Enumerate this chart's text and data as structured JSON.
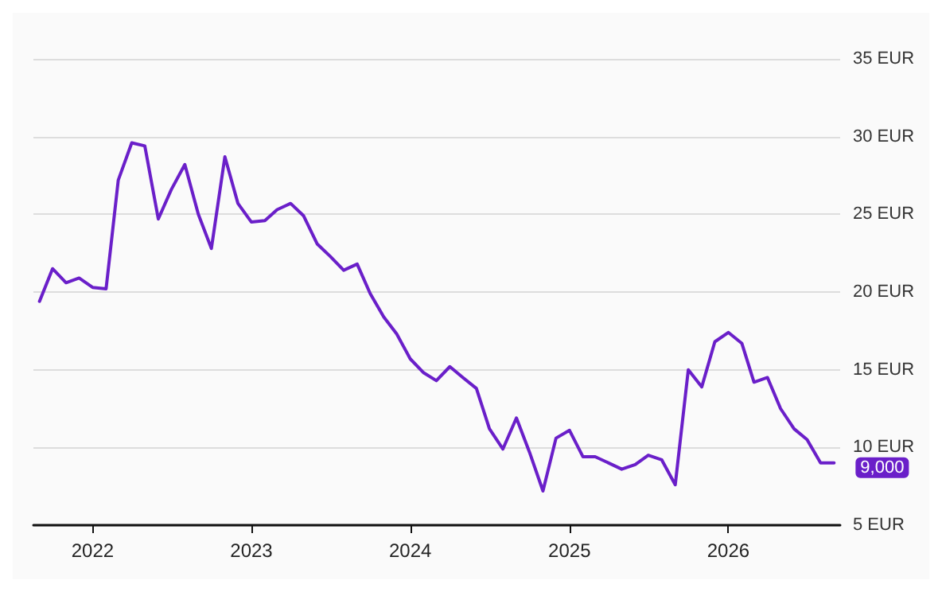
{
  "chart_data": {
    "type": "line",
    "x": [
      "2021-09",
      "2021-10",
      "2021-11",
      "2021-12",
      "2022-01",
      "2022-02",
      "2022-03",
      "2022-04",
      "2022-05",
      "2022-06",
      "2022-07",
      "2022-08",
      "2022-09",
      "2022-10",
      "2022-11",
      "2022-12",
      "2023-01",
      "2023-02",
      "2023-03",
      "2023-04",
      "2023-05",
      "2023-06",
      "2023-07",
      "2023-08",
      "2023-09",
      "2023-10",
      "2023-11",
      "2023-12",
      "2024-01",
      "2024-02",
      "2024-03",
      "2024-04",
      "2024-05",
      "2024-06",
      "2024-07",
      "2024-08",
      "2024-09",
      "2024-10",
      "2024-11",
      "2024-12",
      "2025-01",
      "2025-02",
      "2025-03",
      "2025-04",
      "2025-05",
      "2025-06",
      "2025-07",
      "2025-08",
      "2025-09",
      "2025-10",
      "2025-11",
      "2025-12",
      "2026-01",
      "2026-02",
      "2026-03",
      "2026-04",
      "2026-05",
      "2026-06",
      "2026-07",
      "2026-08",
      "2026-09"
    ],
    "series": [
      {
        "color": "#6a1fc9",
        "values": [
          19.4,
          21.5,
          20.6,
          20.9,
          20.3,
          20.2,
          27.2,
          29.6,
          29.4,
          24.7,
          26.6,
          28.2,
          25.0,
          22.8,
          28.7,
          25.7,
          24.5,
          24.6,
          25.3,
          25.7,
          24.9,
          23.1,
          22.3,
          21.4,
          21.8,
          19.9,
          18.4,
          17.3,
          15.7,
          14.8,
          14.3,
          15.2,
          14.5,
          13.8,
          11.2,
          9.9,
          11.9,
          9.7,
          7.2,
          10.6,
          11.1,
          9.4,
          9.4,
          9.0,
          8.6,
          8.9,
          9.5,
          9.2,
          7.6,
          15.0,
          13.9,
          16.8,
          17.4,
          16.7,
          14.2,
          14.5,
          12.5,
          11.2,
          10.5,
          9.0,
          9.0
        ]
      }
    ],
    "annotations": [
      {
        "text": "9,000",
        "x": "2026-09",
        "y": 9
      }
    ],
    "xlim": [
      "2021-08-18",
      "2026-09-15"
    ],
    "xticks": [
      {
        "value": "2022-01",
        "label": "2022"
      },
      {
        "value": "2023-01",
        "label": "2023"
      },
      {
        "value": "2024-01",
        "label": "2024"
      },
      {
        "value": "2025-01",
        "label": "2025"
      },
      {
        "value": "2026-01",
        "label": "2026"
      }
    ],
    "ylim": [
      5,
      35
    ],
    "yticks": [
      {
        "value": 5,
        "label": "5 EUR"
      },
      {
        "value": 10,
        "label": "10 EUR"
      },
      {
        "value": 15,
        "label": "15 EUR"
      },
      {
        "value": 20,
        "label": "20 EUR"
      },
      {
        "value": 25,
        "label": "25 EUR"
      },
      {
        "value": 30,
        "label": "30 EUR"
      },
      {
        "value": 35,
        "label": "35 EUR"
      }
    ],
    "grid": "y",
    "marker": "none",
    "line_style": "solid"
  }
}
